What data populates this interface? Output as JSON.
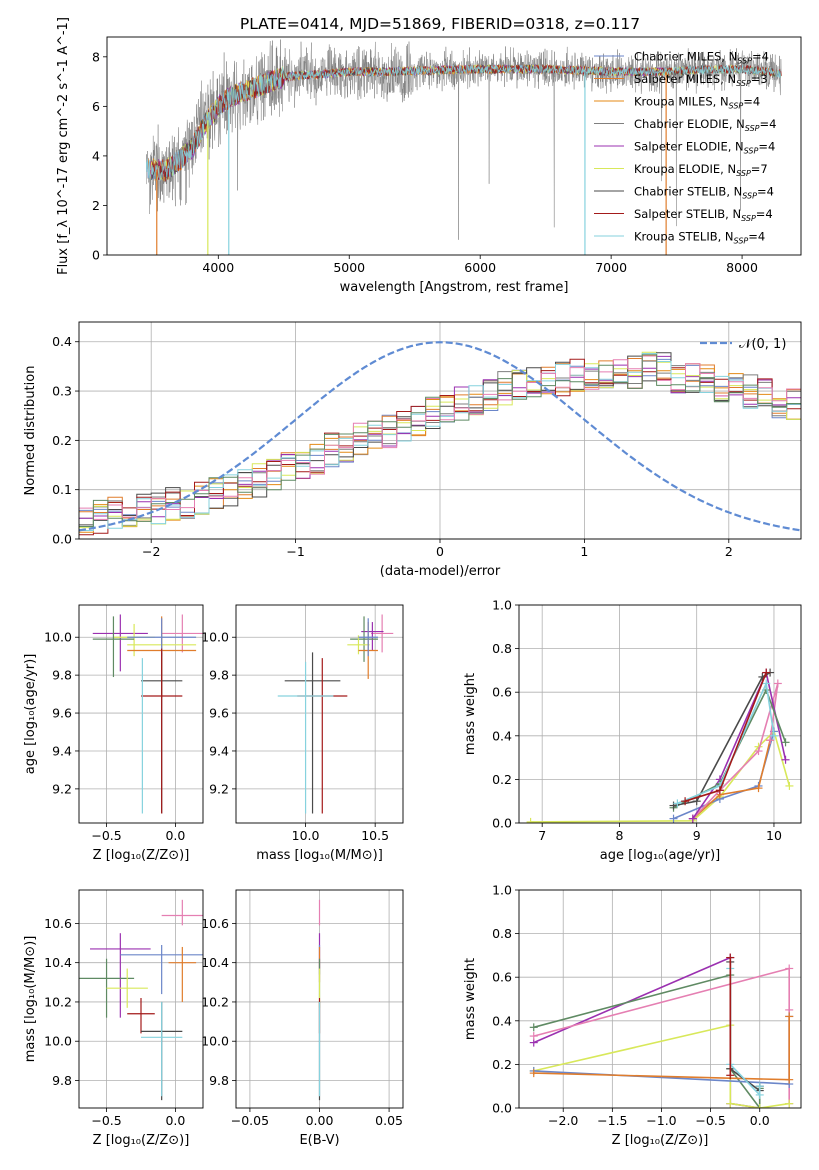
{
  "figure_title": "PLATE=0414, MJD=51869, FIBERID=0318, z=0.117",
  "colors": {
    "chabrier_miles": "#6b86c9",
    "salpeter_miles": "#e07d2c",
    "kroupa_miles": "#e48a16",
    "chabrier_elodie": "#7f7f7f",
    "salpeter_elodie": "#9b30b0",
    "kroupa_elodie": "#d8e85a",
    "chabrier_stelib": "#4a4a4a",
    "salpeter_stelib": "#a31a1a",
    "kroupa_stelib": "#86d2de",
    "pink": "#e57fb2",
    "green": "#5f8a63",
    "grid": "#b0b0b0",
    "normal_curve": "#5f8bd3"
  },
  "chart_data": [
    {
      "id": "spectrum",
      "type": "line",
      "title": "",
      "xlabel": "wavelength [Angstrom, rest frame]",
      "ylabel": "Flux [f_λ 10^-17 erg cm^-2 s^-1 A^-1]",
      "xlim": [
        3150,
        8450
      ],
      "ylim": [
        0,
        8.8
      ],
      "xticks": [
        4000,
        5000,
        6000,
        7000,
        8000
      ],
      "yticks": [
        0,
        2,
        4,
        6,
        8
      ],
      "grid": false,
      "legend_position": "right",
      "legend": [
        {
          "name": "Chabrier MILES, N",
          "sub": "SSP",
          "suffix": "=4",
          "color_key": "chabrier_miles"
        },
        {
          "name": "Salpeter MILES, N",
          "sub": "SSP",
          "suffix": "=3",
          "color_key": "salpeter_miles"
        },
        {
          "name": "Kroupa MILES, N",
          "sub": "SSP",
          "suffix": "=4",
          "color_key": "kroupa_miles"
        },
        {
          "name": "Chabrier ELODIE, N",
          "sub": "SSP",
          "suffix": "=4",
          "color_key": "chabrier_elodie"
        },
        {
          "name": "Salpeter ELODIE, N",
          "sub": "SSP",
          "suffix": "=4",
          "color_key": "salpeter_elodie"
        },
        {
          "name": "Kroupa ELODIE, N",
          "sub": "SSP",
          "suffix": "=7",
          "color_key": "kroupa_elodie"
        },
        {
          "name": "Chabrier STELIB, N",
          "sub": "SSP",
          "suffix": "=4",
          "color_key": "chabrier_stelib"
        },
        {
          "name": "Salpeter STELIB, N",
          "sub": "SSP",
          "suffix": "=4",
          "color_key": "salpeter_stelib"
        },
        {
          "name": "Kroupa STELIB, N",
          "sub": "SSP",
          "suffix": "=4",
          "color_key": "kroupa_stelib"
        }
      ],
      "continuum": {
        "x": [
          3450,
          3600,
          3700,
          3800,
          3900,
          4000,
          4100,
          4300,
          4500,
          4800,
          5000,
          5300,
          5600,
          5900,
          6200,
          6500,
          6800,
          7000,
          7200,
          7400,
          7600,
          7800,
          8000,
          8200,
          8300
        ],
        "y": [
          3.5,
          3.4,
          3.8,
          4.3,
          5.3,
          6.0,
          6.4,
          6.8,
          7.2,
          7.3,
          7.4,
          7.4,
          7.45,
          7.5,
          7.5,
          7.5,
          7.45,
          7.4,
          7.4,
          7.4,
          7.45,
          7.5,
          7.5,
          7.4,
          7.3
        ]
      },
      "model_dropouts": [
        {
          "x": 3530,
          "series": "salpeter_miles"
        },
        {
          "x": 3920,
          "series": "kroupa_elodie"
        },
        {
          "x": 4080,
          "series": "kroupa_stelib"
        },
        {
          "x": 6800,
          "series": "kroupa_stelib"
        },
        {
          "x": 7420,
          "series": "salpeter_miles"
        }
      ],
      "model_x_range": [
        3460,
        7430
      ]
    },
    {
      "id": "residuals",
      "type": "line",
      "xlabel": "(data-model)/error",
      "ylabel": "Normed distribution",
      "xlim": [
        -2.5,
        2.5
      ],
      "ylim": [
        0,
        0.44
      ],
      "xticks": [
        -2,
        -1,
        0,
        1,
        2
      ],
      "yticks": [
        0.0,
        0.1,
        0.2,
        0.3,
        0.4
      ],
      "grid": true,
      "legend": [
        {
          "name": "𝒩(0, 1)",
          "color_key": "normal_curve"
        }
      ],
      "legend_position": "top-right",
      "bin_width": 0.1,
      "base_histogram": [
        0.04,
        0.045,
        0.05,
        0.055,
        0.06,
        0.065,
        0.07,
        0.075,
        0.08,
        0.09,
        0.1,
        0.11,
        0.12,
        0.13,
        0.14,
        0.15,
        0.16,
        0.18,
        0.19,
        0.2,
        0.21,
        0.22,
        0.23,
        0.24,
        0.255,
        0.265,
        0.275,
        0.285,
        0.295,
        0.305,
        0.31,
        0.315,
        0.32,
        0.325,
        0.33,
        0.33,
        0.335,
        0.335,
        0.34,
        0.345,
        0.345,
        0.33,
        0.325,
        0.32,
        0.31,
        0.305,
        0.3,
        0.29,
        0.28,
        0.27,
        0.26,
        0.255,
        0.245,
        0.23,
        0.22,
        0.21,
        0.2,
        0.19,
        0.18,
        0.17,
        0.16,
        0.15,
        0.14,
        0.13,
        0.12,
        0.11,
        0.1,
        0.095,
        0.09,
        0.085,
        0.08,
        0.075,
        0.07,
        0.065,
        0.06
      ],
      "series_keys": [
        "chabrier_miles",
        "salpeter_miles",
        "kroupa_miles",
        "chabrier_elodie",
        "salpeter_elodie",
        "kroupa_elodie",
        "chabrier_stelib",
        "salpeter_stelib",
        "kroupa_stelib",
        "pink",
        "green"
      ]
    },
    {
      "id": "age_vs_Z",
      "type": "scatter",
      "xlabel": "Z [log₁₀(Z/Z⊙)]",
      "ylabel": "age  [log₁₀(age/yr)]",
      "xlim": [
        -0.7,
        0.2
      ],
      "ylim": [
        9.02,
        10.17
      ],
      "xticks": [
        -0.5,
        0.0
      ],
      "yticks": [
        9.2,
        9.4,
        9.6,
        9.8,
        10.0
      ],
      "grid": true,
      "points": [
        {
          "x": -0.4,
          "y": 10.02,
          "xerr": 0.2,
          "yerr_lo": 0.2,
          "yerr_hi": 0.1,
          "color_key": "salpeter_elodie"
        },
        {
          "x": 0.05,
          "y": 10.02,
          "xerr": 0.15,
          "yerr_lo": 0.1,
          "yerr_hi": 0.1,
          "color_key": "pink"
        },
        {
          "x": -0.3,
          "y": 10.0,
          "xerr": 0.15,
          "yerr_lo": 0.1,
          "yerr_hi": 0.07,
          "color_key": "kroupa_elodie"
        },
        {
          "x": -0.45,
          "y": 9.99,
          "xerr": 0.15,
          "yerr_lo": 0.2,
          "yerr_hi": 0.12,
          "color_key": "green"
        },
        {
          "x": -0.1,
          "y": 9.96,
          "xerr": 0.25,
          "yerr_lo": 0.05,
          "yerr_hi": 0.05,
          "color_key": "kroupa_elodie"
        },
        {
          "x": -0.1,
          "y": 9.93,
          "xerr": 0.25,
          "yerr_lo": 0.25,
          "yerr_hi": 0.18,
          "color_key": "salpeter_miles"
        },
        {
          "x": -0.1,
          "y": 10.0,
          "xerr": 0.25,
          "yerr_lo": 0.1,
          "yerr_hi": 0.1,
          "color_key": "chabrier_miles"
        },
        {
          "x": -0.1,
          "y": 9.77,
          "xerr": 0.15,
          "yerr_lo": 0.7,
          "yerr_hi": 0.15,
          "color_key": "chabrier_stelib"
        },
        {
          "x": -0.1,
          "y": 9.69,
          "xerr": 0.15,
          "yerr_lo": 0.62,
          "yerr_hi": 0.25,
          "color_key": "salpeter_stelib"
        },
        {
          "x": -0.24,
          "y": 9.69,
          "xerr": 0.0,
          "yerr_lo": 0.62,
          "yerr_hi": 0.2,
          "color_key": "kroupa_stelib"
        }
      ]
    },
    {
      "id": "age_vs_mass",
      "type": "scatter",
      "xlabel": "mass [log₁₀(M/M⊙)]",
      "ylabel": "",
      "xlim": [
        9.5,
        10.7
      ],
      "ylim": [
        9.02,
        10.17
      ],
      "xticks": [
        10.0,
        10.5
      ],
      "yticks": [
        9.2,
        9.4,
        9.6,
        9.8,
        10.0
      ],
      "grid": true,
      "points": [
        {
          "x": 10.55,
          "y": 10.02,
          "xerr": 0.08,
          "yerr_lo": 0.1,
          "yerr_hi": 0.1,
          "color_key": "pink"
        },
        {
          "x": 10.48,
          "y": 10.03,
          "xerr": 0.08,
          "yerr_lo": 0.1,
          "yerr_hi": 0.05,
          "color_key": "salpeter_elodie"
        },
        {
          "x": 10.42,
          "y": 9.99,
          "xerr": 0.1,
          "yerr_lo": 0.12,
          "yerr_hi": 0.12,
          "color_key": "green"
        },
        {
          "x": 10.38,
          "y": 9.96,
          "xerr": 0.08,
          "yerr_lo": 0.05,
          "yerr_hi": 0.05,
          "color_key": "kroupa_elodie"
        },
        {
          "x": 10.45,
          "y": 9.93,
          "xerr": 0.07,
          "yerr_lo": 0.15,
          "yerr_hi": 0.15,
          "color_key": "salpeter_miles"
        },
        {
          "x": 10.45,
          "y": 10.0,
          "xerr": 0.07,
          "yerr_lo": 0.1,
          "yerr_hi": 0.1,
          "color_key": "chabrier_miles"
        },
        {
          "x": 10.05,
          "y": 9.77,
          "xerr": 0.2,
          "yerr_lo": 0.7,
          "yerr_hi": 0.15,
          "color_key": "chabrier_stelib"
        },
        {
          "x": 10.12,
          "y": 9.69,
          "xerr": 0.18,
          "yerr_lo": 0.62,
          "yerr_hi": 0.2,
          "color_key": "salpeter_stelib"
        },
        {
          "x": 10.0,
          "y": 9.69,
          "xerr": 0.2,
          "yerr_lo": 0.62,
          "yerr_hi": 0.18,
          "color_key": "kroupa_stelib"
        }
      ]
    },
    {
      "id": "mass_weight_vs_age",
      "type": "line",
      "xlabel": "age  [log₁₀(age/yr)]",
      "ylabel": "mass weight",
      "xlim": [
        6.7,
        10.35
      ],
      "ylim": [
        0,
        1.0
      ],
      "xticks": [
        7,
        8,
        9,
        10
      ],
      "yticks": [
        0.0,
        0.2,
        0.4,
        0.6,
        0.8,
        1.0
      ],
      "grid": true,
      "series": [
        {
          "color_key": "kroupa_elodie",
          "x": [
            6.85,
            8.95,
            9.3,
            9.8,
            10.0,
            10.2
          ],
          "y": [
            0.005,
            0.01,
            0.12,
            0.35,
            0.42,
            0.17
          ]
        },
        {
          "color_key": "chabrier_miles",
          "x": [
            8.7,
            9.3,
            9.8,
            10.0
          ],
          "y": [
            0.02,
            0.11,
            0.17,
            0.42
          ]
        },
        {
          "color_key": "salpeter_miles",
          "x": [
            8.95,
            9.3,
            9.8,
            9.95
          ],
          "y": [
            0.02,
            0.13,
            0.16,
            0.38
          ]
        },
        {
          "color_key": "pink",
          "x": [
            8.95,
            9.3,
            9.8,
            10.05,
            9.95
          ],
          "y": [
            0.02,
            0.15,
            0.33,
            0.64,
            0.38
          ]
        },
        {
          "color_key": "salpeter_elodie",
          "x": [
            8.95,
            9.3,
            9.9,
            10.15
          ],
          "y": [
            0.02,
            0.2,
            0.69,
            0.29
          ]
        },
        {
          "color_key": "green",
          "x": [
            8.7,
            9.3,
            9.9,
            10.15
          ],
          "y": [
            0.07,
            0.18,
            0.61,
            0.37
          ]
        },
        {
          "color_key": "chabrier_stelib",
          "x": [
            8.7,
            9.0,
            9.85,
            9.95
          ],
          "y": [
            0.08,
            0.1,
            0.67,
            0.69
          ]
        },
        {
          "color_key": "kroupa_stelib",
          "x": [
            8.75,
            9.3,
            9.9,
            10.0
          ],
          "y": [
            0.09,
            0.17,
            0.64,
            0.4
          ]
        },
        {
          "color_key": "salpeter_stelib",
          "x": [
            8.85,
            9.3,
            9.9
          ],
          "y": [
            0.1,
            0.15,
            0.69
          ]
        }
      ]
    },
    {
      "id": "mass_vs_Z",
      "type": "scatter",
      "xlabel": "Z [log₁₀(Z/Z⊙)]",
      "ylabel": "mass [log₁₀(M/M⊙)]",
      "xlim": [
        -0.7,
        0.2
      ],
      "ylim": [
        9.66,
        10.77
      ],
      "xticks": [
        -0.5,
        0.0
      ],
      "yticks": [
        9.8,
        10.0,
        10.2,
        10.4,
        10.6
      ],
      "grid": true,
      "points": [
        {
          "x": 0.05,
          "y": 10.64,
          "xerr": 0.15,
          "yerr_lo": 0.05,
          "yerr_hi": 0.08,
          "color_key": "pink"
        },
        {
          "x": -0.4,
          "y": 10.47,
          "xerr": 0.22,
          "yerr_lo": 0.35,
          "yerr_hi": 0.08,
          "color_key": "salpeter_elodie"
        },
        {
          "x": -0.1,
          "y": 10.44,
          "xerr": 0.3,
          "yerr_lo": 0.2,
          "yerr_hi": 0.05,
          "color_key": "chabrier_miles"
        },
        {
          "x": 0.05,
          "y": 10.4,
          "xerr": 0.1,
          "yerr_lo": 0.2,
          "yerr_hi": 0.08,
          "color_key": "salpeter_miles"
        },
        {
          "x": -0.5,
          "y": 10.32,
          "xerr": 0.2,
          "yerr_lo": 0.2,
          "yerr_hi": 0.1,
          "color_key": "green"
        },
        {
          "x": -0.35,
          "y": 10.27,
          "xerr": 0.15,
          "yerr_lo": 0.1,
          "yerr_hi": 0.1,
          "color_key": "kroupa_elodie"
        },
        {
          "x": -0.25,
          "y": 10.14,
          "xerr": 0.1,
          "yerr_lo": 0.1,
          "yerr_hi": 0.08,
          "color_key": "salpeter_stelib"
        },
        {
          "x": -0.1,
          "y": 10.05,
          "xerr": 0.15,
          "yerr_lo": 0.35,
          "yerr_hi": 0.15,
          "color_key": "chabrier_stelib"
        },
        {
          "x": -0.1,
          "y": 10.02,
          "xerr": 0.15,
          "yerr_lo": 0.3,
          "yerr_hi": 0.18,
          "color_key": "kroupa_stelib"
        }
      ]
    },
    {
      "id": "mass_vs_ebv",
      "type": "scatter",
      "xlabel": "E(B-V)",
      "ylabel": "",
      "xlim": [
        -0.06,
        0.06
      ],
      "ylim": [
        9.66,
        10.77
      ],
      "xticks": [
        -0.05,
        0.0,
        0.05
      ],
      "yticks": [
        9.8,
        10.0,
        10.2,
        10.4,
        10.6
      ],
      "grid": true,
      "points": [
        {
          "x": 0.0,
          "y": 10.64,
          "yerr_lo": 0.05,
          "yerr_hi": 0.08,
          "color_key": "pink"
        },
        {
          "x": 0.0,
          "y": 10.47,
          "yerr_lo": 0.1,
          "yerr_hi": 0.08,
          "color_key": "salpeter_elodie"
        },
        {
          "x": 0.0,
          "y": 10.44,
          "yerr_lo": 0.1,
          "yerr_hi": 0.05,
          "color_key": "chabrier_miles"
        },
        {
          "x": 0.0,
          "y": 10.4,
          "yerr_lo": 0.1,
          "yerr_hi": 0.08,
          "color_key": "salpeter_miles"
        },
        {
          "x": 0.0,
          "y": 10.32,
          "yerr_lo": 0.1,
          "yerr_hi": 0.1,
          "color_key": "green"
        },
        {
          "x": 0.0,
          "y": 10.27,
          "yerr_lo": 0.1,
          "yerr_hi": 0.1,
          "color_key": "kroupa_elodie"
        },
        {
          "x": 0.0,
          "y": 10.14,
          "yerr_lo": 0.1,
          "yerr_hi": 0.08,
          "color_key": "salpeter_stelib"
        },
        {
          "x": 0.0,
          "y": 10.05,
          "yerr_lo": 0.35,
          "yerr_hi": 0.15,
          "color_key": "chabrier_stelib"
        },
        {
          "x": 0.0,
          "y": 10.02,
          "yerr_lo": 0.3,
          "yerr_hi": 0.18,
          "color_key": "kroupa_stelib"
        }
      ]
    },
    {
      "id": "mass_weight_vs_Z",
      "type": "line",
      "xlabel": "Z [log₁₀(Z/Z⊙)]",
      "ylabel": "mass weight",
      "xlim": [
        -2.45,
        0.42
      ],
      "ylim": [
        0,
        1.0
      ],
      "xticks": [
        -2.0,
        -1.5,
        -1.0,
        -0.5,
        0.0
      ],
      "yticks": [
        0.0,
        0.2,
        0.4,
        0.6,
        0.8,
        1.0
      ],
      "grid": true,
      "series": [
        {
          "color_key": "salpeter_elodie",
          "x": [
            -2.3,
            -0.3,
            -0.3,
            0.0
          ],
          "y": [
            0.3,
            0.69,
            0.02,
            0.0
          ]
        },
        {
          "color_key": "green",
          "x": [
            -2.3,
            -0.3,
            -0.3,
            0.0,
            0.0
          ],
          "y": [
            0.37,
            0.61,
            0.18,
            0.0,
            0.09
          ]
        },
        {
          "color_key": "pink",
          "x": [
            -2.3,
            0.3,
            0.3,
            0.3
          ],
          "y": [
            0.33,
            0.64,
            0.45,
            0.02
          ]
        },
        {
          "color_key": "kroupa_elodie",
          "x": [
            -2.3,
            -0.3,
            -0.3,
            0.0,
            0.3
          ],
          "y": [
            0.17,
            0.38,
            0.02,
            0.0,
            0.02
          ]
        },
        {
          "color_key": "chabrier_miles",
          "x": [
            -2.3,
            0.3,
            0.3
          ],
          "y": [
            0.17,
            0.11,
            0.42
          ]
        },
        {
          "color_key": "salpeter_miles",
          "x": [
            -2.3,
            0.3,
            0.3
          ],
          "y": [
            0.16,
            0.13,
            0.42
          ]
        },
        {
          "color_key": "chabrier_stelib",
          "x": [
            -0.3,
            -0.3,
            0.0,
            0.0
          ],
          "y": [
            0.67,
            0.18,
            0.08,
            0.1
          ]
        },
        {
          "color_key": "kroupa_stelib",
          "x": [
            -0.3,
            -0.3,
            0.0,
            0.0
          ],
          "y": [
            0.64,
            0.2,
            0.06,
            0.1
          ]
        },
        {
          "color_key": "salpeter_stelib",
          "x": [
            -0.3,
            -0.3
          ],
          "y": [
            0.69,
            0.15
          ]
        }
      ]
    }
  ]
}
